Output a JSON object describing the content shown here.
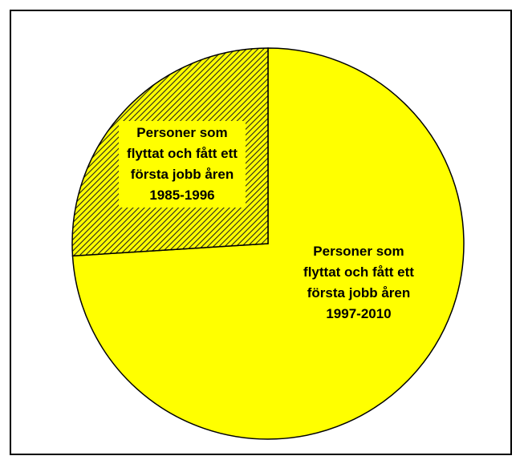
{
  "chart_data": {
    "type": "pie",
    "categories": [
      "Personer som flyttat och fått ett första jobb åren 1997-2010",
      "Personer som flyttat och fått ett första jobb åren 1985-1996"
    ],
    "values": [
      74,
      26
    ],
    "colors": [
      "#ffff00",
      "hatch"
    ]
  }
}
